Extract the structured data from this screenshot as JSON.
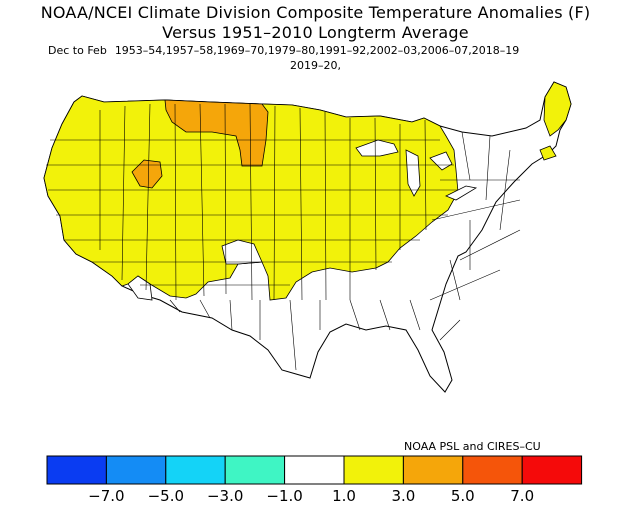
{
  "title": {
    "line1": "NOAA/NCEI Climate Division Composite Temperature Anomalies (F)",
    "line2": "Versus 1951–2010 Longterm Average",
    "season": "Dec to Feb",
    "years": "1953–54,1957–58,1969–70,1979–80,1991–92,2002–03,2006–07,2018–19",
    "years_cont": "2019–20,"
  },
  "credit": "NOAA PSL and CIRES–CU",
  "legend": {
    "colors": [
      "#0a3cf2",
      "#148cf5",
      "#14d3f7",
      "#3ff5c4",
      "#ffffff",
      "#f2f20a",
      "#f5a60a",
      "#f5550a",
      "#f50a0a"
    ],
    "ticks": [
      "−7.0",
      "−5.0",
      "−3.0",
      "−1.0",
      "1.0",
      "3.0",
      "5.0",
      "7.0"
    ]
  },
  "colors": {
    "warm1": "#f2f20a",
    "warm2": "#f5a60a",
    "neutral": "#ffffff"
  }
}
